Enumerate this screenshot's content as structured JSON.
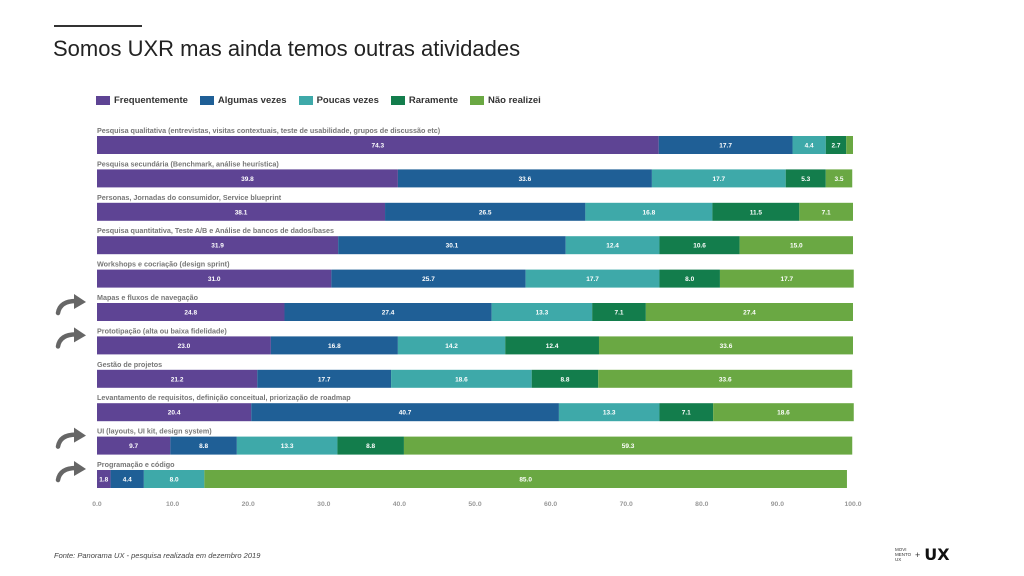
{
  "title": "Somos UXR mas ainda temos outras atividades",
  "footer": "Fonte: Panorama UX - pesquisa realizada em dezembro 2019",
  "logo": {
    "small_text": "MOVI MENTO UX",
    "plus": "+",
    "ux": "UX"
  },
  "colors": [
    "#5e4494",
    "#1f5f96",
    "#3ea9a9",
    "#137d4c",
    "#6aa843"
  ],
  "label_colors": [
    "#ffffff",
    "#ffffff",
    "#ffffff",
    "#ffffff",
    "#ffffff"
  ],
  "chart_data": {
    "type": "bar",
    "orientation": "horizontal",
    "stacked": true,
    "xlim": [
      0,
      100
    ],
    "x_ticks": [
      "0.0",
      "10.0",
      "20.0",
      "30.0",
      "40.0",
      "50.0",
      "60.0",
      "70.0",
      "80.0",
      "90.0",
      "100.0"
    ],
    "legend_position": "top",
    "categories": [
      "Pesquisa qualitativa (entrevistas, visitas contextuais, teste de usabilidade, grupos de discussão etc)",
      "Pesquisa secundária (Benchmark, análise heurística)",
      "Personas, Jornadas do consumidor, Service blueprint",
      "Pesquisa quantitativa, Teste A/B e Análise de bancos de dados/bases",
      "Workshops e cocriação (design sprint)",
      "Mapas e fluxos de navegação",
      "Prototipação (alta ou baixa fidelidade)",
      "Gestão de projetos",
      "Levantamento de requisitos, definição conceitual, priorização de roadmap",
      "UI (layouts, UI kit, design system)",
      "Programação e código"
    ],
    "highlighted": [
      false,
      false,
      false,
      false,
      false,
      true,
      true,
      false,
      false,
      true,
      true
    ],
    "series": [
      {
        "name": "Frequentemente",
        "values": [
          74.3,
          39.8,
          38.1,
          31.9,
          31.0,
          24.8,
          23.0,
          21.2,
          20.4,
          9.7,
          1.8
        ]
      },
      {
        "name": "Algumas vezes",
        "values": [
          17.7,
          33.6,
          26.5,
          30.1,
          25.7,
          27.4,
          16.8,
          17.7,
          40.7,
          8.8,
          4.4
        ]
      },
      {
        "name": "Poucas vezes",
        "values": [
          4.4,
          17.7,
          16.8,
          12.4,
          17.7,
          13.3,
          14.2,
          18.6,
          13.3,
          13.3,
          8.0
        ]
      },
      {
        "name": "Raramente",
        "values": [
          2.7,
          5.3,
          11.5,
          10.6,
          8.0,
          7.1,
          12.4,
          8.8,
          7.1,
          8.8,
          0
        ]
      },
      {
        "name": "Não realizei",
        "values": [
          0.9,
          3.5,
          7.1,
          15.0,
          17.7,
          27.4,
          33.6,
          33.6,
          18.6,
          59.3,
          85.0
        ]
      }
    ],
    "data_labels": [
      [
        "74.3",
        "17.7",
        "4.4",
        "2.7",
        ""
      ],
      [
        "39.8",
        "33.6",
        "17.7",
        "5.3",
        "3.5"
      ],
      [
        "38.1",
        "26.5",
        "16.8",
        "11.5",
        "7.1"
      ],
      [
        "31.9",
        "30.1",
        "12.4",
        "10.6",
        "15.0"
      ],
      [
        "31.0",
        "25.7",
        "17.7",
        "8.0",
        "17.7"
      ],
      [
        "24.8",
        "27.4",
        "13.3",
        "7.1",
        "27.4"
      ],
      [
        "23.0",
        "16.8",
        "14.2",
        "12.4",
        "33.6"
      ],
      [
        "21.2",
        "17.7",
        "18.6",
        "8.8",
        "33.6"
      ],
      [
        "20.4",
        "40.7",
        "13.3",
        "7.1",
        "18.6"
      ],
      [
        "9.7",
        "8.8",
        "13.3",
        "8.8",
        "59.3"
      ],
      [
        "1.8",
        "4.4",
        "8.0",
        "",
        "85.0"
      ]
    ]
  }
}
